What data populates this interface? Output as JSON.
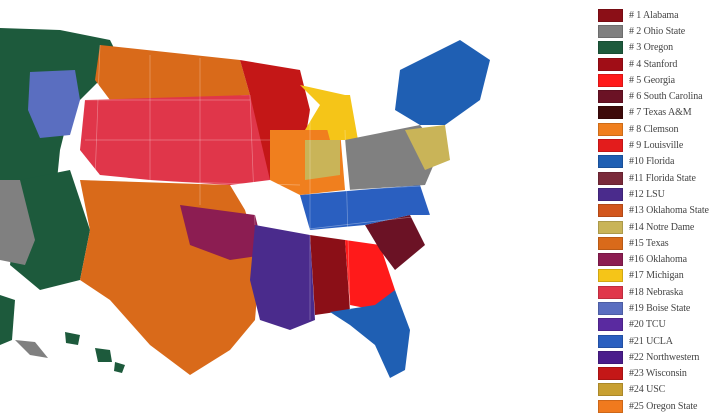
{
  "legend": [
    {
      "label": "#  1 Alabama",
      "color": "#8b0f17"
    },
    {
      "label": "#  2 Ohio State",
      "color": "#808080"
    },
    {
      "label": "#  3 Oregon",
      "color": "#1d5a3c"
    },
    {
      "label": "#  4 Stanford",
      "color": "#a00d16"
    },
    {
      "label": "#  5 Georgia",
      "color": "#ff1a1a"
    },
    {
      "label": "#  6 South Carolina",
      "color": "#6b1225"
    },
    {
      "label": "#  7 Texas A&M",
      "color": "#3d0a0a"
    },
    {
      "label": "#  8 Clemson",
      "color": "#f07f1e"
    },
    {
      "label": "#  9 Louisville",
      "color": "#e31c1c"
    },
    {
      "label": "#10 Florida",
      "color": "#1f5fb3"
    },
    {
      "label": "#11 Florida State",
      "color": "#7a2a3a"
    },
    {
      "label": "#12 LSU",
      "color": "#4a2b8c"
    },
    {
      "label": "#13 Oklahoma State",
      "color": "#d2561c"
    },
    {
      "label": "#14 Notre Dame",
      "color": "#c9b458"
    },
    {
      "label": "#15 Texas",
      "color": "#d96a1a"
    },
    {
      "label": "#16 Oklahoma",
      "color": "#8c1d52"
    },
    {
      "label": "#17 Michigan",
      "color": "#f5c518"
    },
    {
      "label": "#18 Nebraska",
      "color": "#e0364a"
    },
    {
      "label": "#19 Boise State",
      "color": "#5a6ec0"
    },
    {
      "label": "#20 TCU",
      "color": "#5a2aa0"
    },
    {
      "label": "#21 UCLA",
      "color": "#2a5fc0"
    },
    {
      "label": "#22 Northwestern",
      "color": "#4a1d8c"
    },
    {
      "label": "#23 Wisconsin",
      "color": "#c41717"
    },
    {
      "label": "#24 USC",
      "color": "#c8a032"
    },
    {
      "label": "#25 Oregon State",
      "color": "#f07a1e"
    }
  ]
}
